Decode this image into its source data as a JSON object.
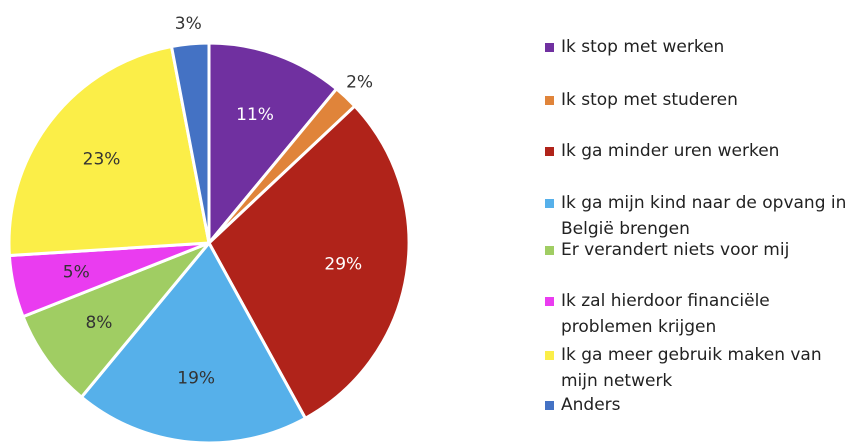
{
  "chart_data": {
    "type": "pie",
    "categories": [
      "Ik stop met werken",
      "Ik stop met studeren",
      "Ik ga minder uren werken",
      "Ik ga mijn kind naar de opvang in België brengen",
      "Er verandert niets voor mij",
      "Ik zal hierdoor financiële problemen krijgen",
      "Ik ga meer gebruik maken van mijn netwerk",
      "Anders"
    ],
    "values": [
      11,
      2,
      29,
      19,
      8,
      5,
      23,
      3
    ],
    "value_labels": [
      "11%",
      "2%",
      "29%",
      "19%",
      "8%",
      "5%",
      "23%",
      "3%"
    ],
    "colors": [
      "#7030a0",
      "#e0843a",
      "#b0231a",
      "#56b0ea",
      "#a0cd63",
      "#ea3cf0",
      "#fbee48",
      "#4472c4"
    ],
    "legend": "right"
  }
}
